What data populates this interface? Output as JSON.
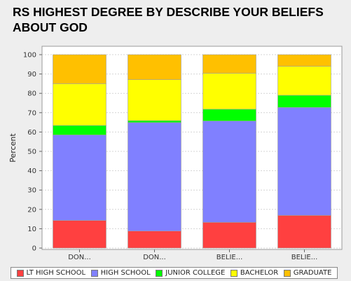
{
  "chart_data": {
    "type": "bar",
    "stacked": true,
    "title": "RS HIGHEST DEGREE BY DESCRIBE YOUR BELIEFS ABOUT GOD",
    "xlabel": "",
    "ylabel": "Percent",
    "ylim": [
      0,
      100
    ],
    "yticks": [
      0,
      10,
      20,
      30,
      40,
      50,
      60,
      70,
      80,
      90,
      100
    ],
    "grid": true,
    "legend_position": "bottom",
    "categories": [
      "DON...",
      "DON...",
      "BELIE...",
      "BELIE..."
    ],
    "series": [
      {
        "name": "LT HIGH SCHOOL",
        "color": "#ff4040",
        "values": [
          14.3,
          8.8,
          13.3,
          16.9
        ]
      },
      {
        "name": "HIGH SCHOOL",
        "color": "#8080ff",
        "values": [
          44.2,
          56.1,
          52.4,
          55.8
        ]
      },
      {
        "name": "JUNIOR COLLEGE",
        "color": "#00ff00",
        "values": [
          4.9,
          1.0,
          6.1,
          6.3
        ]
      },
      {
        "name": "BACHELOR",
        "color": "#ffff00",
        "values": [
          21.6,
          21.2,
          18.6,
          15.0
        ]
      },
      {
        "name": "GRADUATE",
        "color": "#ffc000",
        "values": [
          15.0,
          12.9,
          9.6,
          6.0
        ]
      }
    ]
  }
}
